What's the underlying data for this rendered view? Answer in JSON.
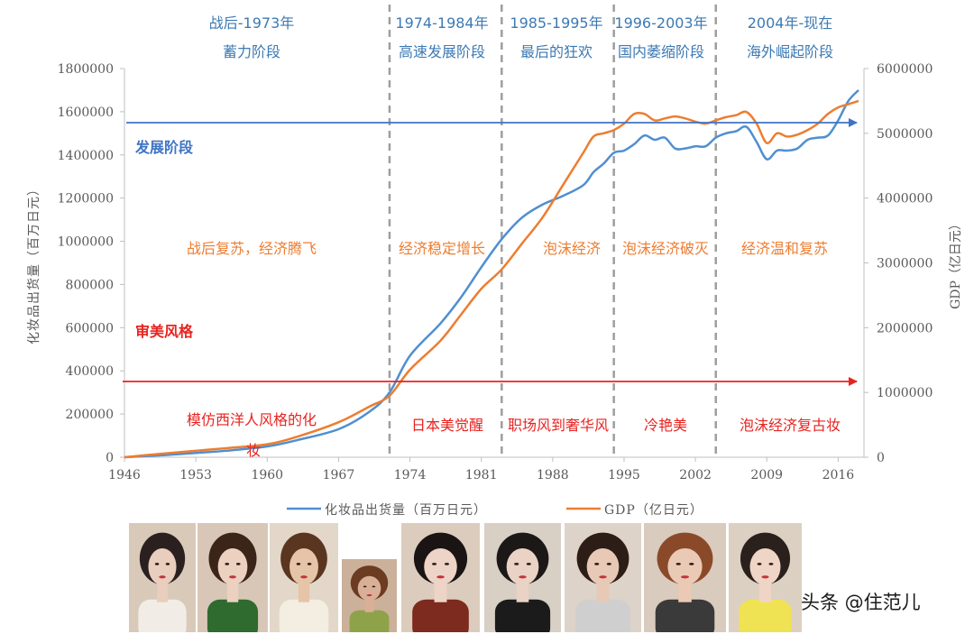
{
  "chart_data": {
    "type": "line",
    "x": [
      1946,
      1950,
      1953,
      1956,
      1960,
      1963,
      1967,
      1970,
      1972,
      1974,
      1977,
      1979,
      1981,
      1983,
      1985,
      1987,
      1989,
      1991,
      1992,
      1993,
      1994,
      1995,
      1996,
      1997,
      1998,
      1999,
      2000,
      2001,
      2002,
      2003,
      2004,
      2005,
      2006,
      2007,
      2008,
      2009,
      2010,
      2011,
      2012,
      2013,
      2014,
      2015,
      2016,
      2017,
      2018
    ],
    "series": [
      {
        "name": "化妆品出货量（百万日元）",
        "axis": "left",
        "color": "#4f8fd1",
        "values": [
          0,
          10000,
          20000,
          30000,
          50000,
          80000,
          130000,
          210000,
          300000,
          470000,
          620000,
          740000,
          880000,
          1010000,
          1110000,
          1170000,
          1210000,
          1260000,
          1320000,
          1360000,
          1410000,
          1420000,
          1450000,
          1490000,
          1470000,
          1480000,
          1430000,
          1430000,
          1440000,
          1440000,
          1480000,
          1500000,
          1510000,
          1530000,
          1460000,
          1380000,
          1420000,
          1420000,
          1430000,
          1470000,
          1480000,
          1490000,
          1560000,
          1650000,
          1700000
        ]
      },
      {
        "name": "GDP（亿日元）",
        "axis": "right",
        "color": "#ed7d31",
        "values": [
          0,
          60000,
          100000,
          140000,
          200000,
          320000,
          540000,
          780000,
          950000,
          1350000,
          1800000,
          2200000,
          2600000,
          2900000,
          3300000,
          3700000,
          4200000,
          4700000,
          4950000,
          5000000,
          5050000,
          5150000,
          5300000,
          5300000,
          5200000,
          5230000,
          5260000,
          5230000,
          5180000,
          5150000,
          5200000,
          5250000,
          5280000,
          5330000,
          5150000,
          4850000,
          5000000,
          4950000,
          4980000,
          5050000,
          5150000,
          5300000,
          5400000,
          5450000,
          5500000
        ]
      }
    ],
    "ylim_left": [
      0,
      1800000
    ],
    "ylim_right": [
      0,
      6000000
    ],
    "xlim": [
      1946,
      2018
    ],
    "x_ticks": [
      "1946",
      "1953",
      "1960",
      "1967",
      "1974",
      "1981",
      "1988",
      "1995",
      "2002",
      "2009",
      "2016"
    ],
    "y_left_ticks": [
      "0",
      "200000",
      "400000",
      "600000",
      "800000",
      "1000000",
      "1200000",
      "1400000",
      "1600000",
      "1800000"
    ],
    "y_right_ticks": [
      "0",
      "1000000",
      "2000000",
      "3000000",
      "4000000",
      "5000000",
      "6000000"
    ],
    "ylabel_left": "化妆品出货量（百万日元）",
    "ylabel_right": "GDP（亿日元）",
    "dividers": [
      1972,
      1983,
      1994,
      2004
    ],
    "legend": [
      "化妆品出货量（百万日元）",
      "GDP（亿日元）"
    ],
    "periods": [
      {
        "line1": "战后-1973年",
        "line2": "蓄力阶段",
        "econ": "战后复苏，经济腾飞",
        "style": "模仿西洋人风格的化",
        "style_cont": "妆"
      },
      {
        "line1": "1974-1984年",
        "line2": "高速发展阶段",
        "econ": "经济稳定增长",
        "style": "日本美觉醒"
      },
      {
        "line1": "1985-1995年",
        "line2": "最后的狂欢",
        "econ": "泡沫经济",
        "style": "职场风到奢华风"
      },
      {
        "line1": "1996-2003年",
        "line2": "国内萎缩阶段",
        "econ": "泡沫经济破灭",
        "style": "冷艳美"
      },
      {
        "line1": "2004年-现在",
        "line2": "海外崛起阶段",
        "econ": "经济温和复苏",
        "style": "泡沫经济复古妆"
      }
    ],
    "row_labels": {
      "development": "发展阶段",
      "aesthetic": "审美风格"
    },
    "colors": {
      "blue_line": "#4f8fd1",
      "orange_line": "#ed7d31",
      "period_text": "#3d7ab3",
      "econ_text": "#ed7d31",
      "style_text": "#e8231f",
      "dev_arrow": "#3f74c4",
      "aes_arrow": "#e8231f"
    }
  },
  "photos": [
    {
      "name": "model-1",
      "skin": "#e9cdbd",
      "hair": "#2b2020",
      "top": "#f1ede6",
      "bg": "#d9c9b8"
    },
    {
      "name": "model-2",
      "skin": "#ecd0c0",
      "hair": "#3a2518",
      "top": "#2f6a2f",
      "bg": "#d8c7b6"
    },
    {
      "name": "model-3",
      "skin": "#e6c4a8",
      "hair": "#5a3520",
      "top": "#f3ede2",
      "bg": "#e2d7c8"
    },
    {
      "name": "model-4",
      "skin": "#d9b097",
      "hair": "#6b3b22",
      "top": "#8ea24a",
      "bg": "#cbb09a"
    },
    {
      "name": "model-5",
      "skin": "#edd4c6",
      "hair": "#1a1414",
      "top": "#7d2a1f",
      "bg": "#dcccbd"
    },
    {
      "name": "model-6",
      "skin": "#ead2c4",
      "hair": "#1c1818",
      "top": "#1b1b1b",
      "bg": "#d8cfc5"
    },
    {
      "name": "model-7",
      "skin": "#e8c9b5",
      "hair": "#2c1d17",
      "top": "#cfcfcf",
      "bg": "#ddd3c8"
    },
    {
      "name": "model-8",
      "skin": "#ebcab5",
      "hair": "#8a4a2a",
      "top": "#3a3a3a",
      "bg": "#d9cbbd"
    },
    {
      "name": "model-9",
      "skin": "#efd5c5",
      "hair": "#2a201c",
      "top": "#efe354",
      "bg": "#dcd0c2"
    }
  ],
  "watermark": "头条 @住范儿"
}
